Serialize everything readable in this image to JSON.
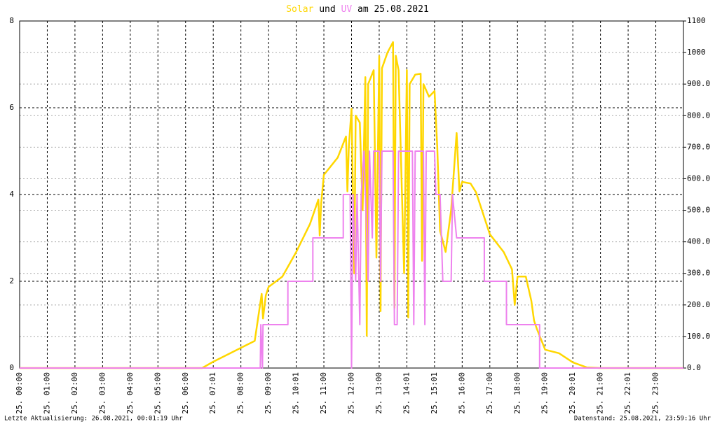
{
  "chart_data": {
    "type": "line",
    "title_middle": "und",
    "title_end": "am 25.08.2021",
    "footer_left": "Letzte Aktualisierung: 26.08.2021, 00:01:19 Uhr",
    "footer_right": "Datenstand: 25.08.2021, 23:59:16 Uhr",
    "xlim": [
      0,
      24
    ],
    "xticks": [
      {
        "value": 0,
        "label": "25. 00:00"
      },
      {
        "value": 1,
        "label": "25. 01:00"
      },
      {
        "value": 2,
        "label": "25. 02:00"
      },
      {
        "value": 3,
        "label": "25. 03:00"
      },
      {
        "value": 4,
        "label": "25. 04:00"
      },
      {
        "value": 5,
        "label": "25. 05:00"
      },
      {
        "value": 6,
        "label": "25. 06:00"
      },
      {
        "value": 7,
        "label": "25. 07:01"
      },
      {
        "value": 8,
        "label": "25. 08:00"
      },
      {
        "value": 9,
        "label": "25. 09:00"
      },
      {
        "value": 10,
        "label": "25. 10:01"
      },
      {
        "value": 11,
        "label": "25. 11:00"
      },
      {
        "value": 12,
        "label": "25. 12:00"
      },
      {
        "value": 13,
        "label": "25. 13:00"
      },
      {
        "value": 14,
        "label": "25. 14:01"
      },
      {
        "value": 15,
        "label": "25. 15:01"
      },
      {
        "value": 16,
        "label": "25. 16:00"
      },
      {
        "value": 17,
        "label": "25. 17:00"
      },
      {
        "value": 18,
        "label": "25. 18:00"
      },
      {
        "value": 19,
        "label": "25. 19:00"
      },
      {
        "value": 20,
        "label": "25. 20:01"
      },
      {
        "value": 21,
        "label": "25. 21:00"
      },
      {
        "value": 22,
        "label": "25. 22:01"
      },
      {
        "value": 23,
        "label": "25. 23:00"
      }
    ],
    "ylim": [
      0,
      8
    ],
    "yticks": [
      0,
      2,
      4,
      6,
      8
    ],
    "y2lim": [
      0,
      1100
    ],
    "y2ticks": [
      {
        "value": 0,
        "label": "0.0"
      },
      {
        "value": 100,
        "label": "100.0"
      },
      {
        "value": 200,
        "label": "200.0"
      },
      {
        "value": 300,
        "label": "300.0"
      },
      {
        "value": 400,
        "label": "400.0"
      },
      {
        "value": 500,
        "label": "500.0"
      },
      {
        "value": 600,
        "label": "600.0"
      },
      {
        "value": 700,
        "label": "700.0"
      },
      {
        "value": 800,
        "label": "800.0"
      },
      {
        "value": 900,
        "label": "900.0"
      },
      {
        "value": 1000,
        "label": "1000"
      },
      {
        "value": 1100,
        "label": "1100"
      }
    ],
    "grid": true,
    "series": [
      {
        "name": "Solar",
        "color": "#ffd700",
        "axis": "y2",
        "x": [
          0,
          6.6,
          7.0,
          7.5,
          8.0,
          8.5,
          8.75,
          8.8,
          8.9,
          9.0,
          9.5,
          10.0,
          10.5,
          10.8,
          10.85,
          10.9,
          11.0,
          11.5,
          11.8,
          11.85,
          11.9,
          12.0,
          12.1,
          12.15,
          12.3,
          12.4,
          12.5,
          12.55,
          12.6,
          12.8,
          12.9,
          13.0,
          13.05,
          13.1,
          13.3,
          13.5,
          13.55,
          13.6,
          13.7,
          13.9,
          14.0,
          14.05,
          14.1,
          14.3,
          14.5,
          14.55,
          14.6,
          14.8,
          15.0,
          15.1,
          15.2,
          15.4,
          15.6,
          15.8,
          15.9,
          16.0,
          16.3,
          16.5,
          17.0,
          17.5,
          17.8,
          17.9,
          18.0,
          18.3,
          18.5,
          18.6,
          18.7,
          19.0,
          19.5,
          20.0,
          20.5,
          21.0,
          24
        ],
        "values": [
          0,
          0,
          20,
          42,
          64,
          86,
          235,
          157,
          230,
          257,
          290,
          368,
          457,
          534,
          420,
          520,
          612,
          667,
          734,
          560,
          700,
          822,
          300,
          800,
          778,
          500,
          922,
          102,
          900,
          944,
          350,
          989,
          180,
          950,
          1000,
          1033,
          190,
          990,
          944,
          300,
          944,
          160,
          900,
          930,
          933,
          340,
          900,
          860,
          878,
          700,
          435,
          368,
          501,
          745,
          560,
          590,
          585,
          557,
          424,
          368,
          313,
          200,
          290,
          290,
          213,
          150,
          124,
          58,
          47,
          18,
          2,
          0,
          0
        ]
      },
      {
        "name": "UV",
        "color": "#ee82ee",
        "x": [
          0,
          8.7,
          8.72,
          8.78,
          8.8,
          9.7,
          9.7,
          10.6,
          10.6,
          11.7,
          11.7,
          11.95,
          12.0,
          12.05,
          12.15,
          12.2,
          12.3,
          12.35,
          12.45,
          12.6,
          12.65,
          12.75,
          12.8,
          13.0,
          13.05,
          13.1,
          13.5,
          13.55,
          13.65,
          13.7,
          14.2,
          14.25,
          14.3,
          14.6,
          14.65,
          14.7,
          15.0,
          15.05,
          15.2,
          15.3,
          15.6,
          15.65,
          15.8,
          16.8,
          16.8,
          17.6,
          17.6,
          18.8,
          18.8,
          24
        ],
        "values": [
          0,
          0,
          1,
          0,
          1,
          1,
          2,
          2,
          3,
          3,
          4,
          4,
          0,
          4,
          2,
          4,
          1,
          4,
          5,
          2,
          5,
          3,
          5,
          5,
          2,
          5,
          5,
          1,
          1,
          5,
          5,
          1,
          5,
          5,
          1,
          5,
          5,
          4,
          4,
          2,
          2,
          4,
          3,
          3,
          2,
          2,
          1,
          1,
          0,
          0
        ]
      }
    ]
  }
}
